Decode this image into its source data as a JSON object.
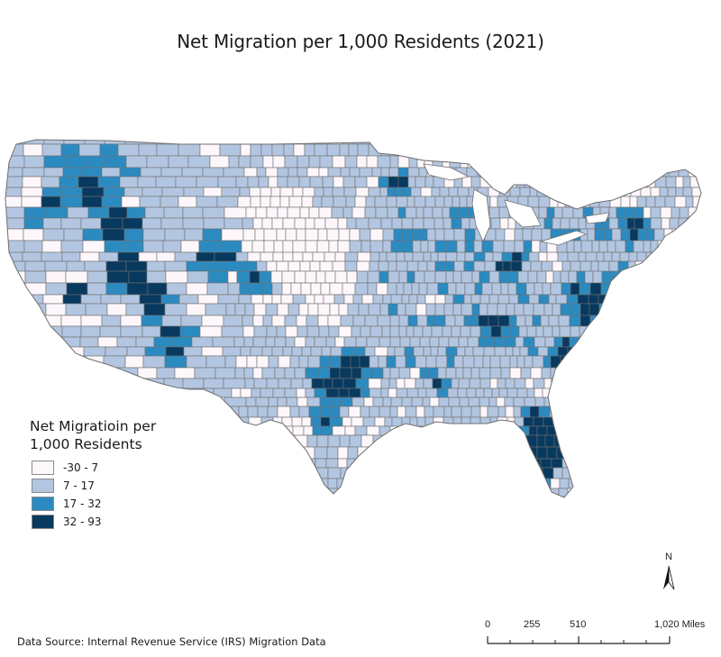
{
  "title": "Net Migration per 1,000 Residents (2021)",
  "legend": {
    "title_line1": "Net Migratioin per",
    "title_line2": "1,000 Residents",
    "classes": [
      {
        "label": "-30 - 7",
        "color": "#fdf7fb"
      },
      {
        "label": "7 - 17",
        "color": "#b3c6e1"
      },
      {
        "label": "17 - 32",
        "color": "#2b8bc1"
      },
      {
        "label": "32 - 93",
        "color": "#08395e"
      }
    ]
  },
  "north_arrow": {
    "label": "N"
  },
  "scale_bar": {
    "labels": [
      "0",
      "255",
      "510",
      "1,020 Miles"
    ]
  },
  "source": "Data Source: Internal Revenue Service (IRS) Migration Data",
  "border_color": "#6f6f6f",
  "chart_data": {
    "type": "heatmap",
    "subtype": "choropleth",
    "title": "Net Migration per 1,000 Residents (2021)",
    "geography": "Contiguous United States counties",
    "legend_title": "Net Migratioin per 1,000 Residents",
    "classes": [
      {
        "range": [
          -30,
          7
        ],
        "label": "-30 - 7",
        "color": "#fdf7fb"
      },
      {
        "range": [
          7,
          17
        ],
        "label": "7 - 17",
        "color": "#b3c6e1"
      },
      {
        "range": [
          17,
          32
        ],
        "label": "17 - 32",
        "color": "#2b8bc1"
      },
      {
        "range": [
          32,
          93
        ],
        "label": "32 - 93",
        "color": "#08395e"
      }
    ],
    "notable_high_areas": [
      "Texas Hill Country / Austin-San Antonio corridor",
      "Dallas-Fort Worth exurbs",
      "Florida (central & southwest)",
      "Idaho",
      "Utah",
      "Nevada",
      "Arizona",
      "Tennessee (Nashville area)",
      "Carolinas coast",
      "Puget Sound",
      "Montana",
      "Maine/New Hampshire interior"
    ],
    "notable_low_areas": [
      "Great Plains (Kansas, Nebraska, Dakotas)",
      "Mississippi Delta",
      "West Virginia / Appalachia",
      "Upstate New York",
      "South Texas border"
    ],
    "scale_bar_miles": [
      0,
      255,
      510,
      1020
    ],
    "source": "Data Source: Internal Revenue Service (IRS) Migration Data"
  }
}
